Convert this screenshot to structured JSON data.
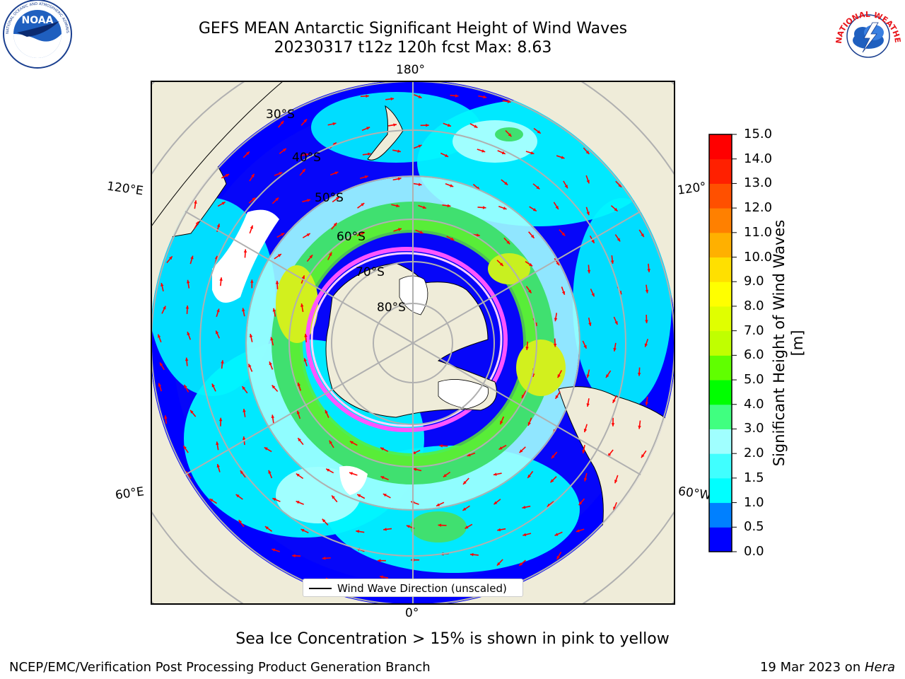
{
  "title": {
    "line1": "GEFS MEAN Antarctic Significant Height of Wind Waves",
    "line2": "20230317 t12z 120h fcst   Max: 8.63"
  },
  "logos": {
    "left": "NOAA",
    "left_ring": "NATIONAL OCEANIC AND ATMOSPHERIC ADMINISTRATION · U.S. DEPARTMENT OF COMMERCE",
    "right_ring": "NATIONAL WEATHER SERVICE"
  },
  "map": {
    "projection": "south-polar-stereographic",
    "longitude_labels": {
      "top": "180°",
      "bottom": "0°",
      "upper_left": "120°E",
      "lower_left": "60°E",
      "upper_right": "120°",
      "lower_right": "60°W"
    },
    "latitude_labels": [
      "30°S",
      "40°S",
      "50°S",
      "60°S",
      "70°S",
      "80°S"
    ],
    "legend_label": "Wind Wave Direction (unscaled)",
    "colors": {
      "land": "#efecd9",
      "ocean_low": "#0000ff",
      "ocean_mid": "#00f5ff",
      "band_green": "#3cdc3c",
      "band_yellow": "#d2f01e",
      "sea_ice": "#ff55ff",
      "arrows": "#ff0000"
    }
  },
  "colorbar": {
    "label": "Significant Height of Wind Waves [m]",
    "ticks": [
      "0.0",
      "0.5",
      "1.0",
      "1.5",
      "2.0",
      "3.0",
      "4.0",
      "5.0",
      "6.0",
      "7.0",
      "8.0",
      "9.0",
      "10.0",
      "11.0",
      "12.0",
      "13.0",
      "14.0",
      "15.0"
    ],
    "colors": [
      "#0000ff",
      "#0080ff",
      "#00ffff",
      "#40ffff",
      "#a0ffff",
      "#40ff80",
      "#00ff00",
      "#60ff00",
      "#c0ff00",
      "#e0ff00",
      "#ffff00",
      "#ffe000",
      "#ffb000",
      "#ff8000",
      "#ff5000",
      "#ff2000",
      "#ff0000"
    ]
  },
  "footer": {
    "sea_ice_note": "Sea Ice Concentration > 15% is shown in pink to yellow",
    "left": "NCEP/EMC/Verification Post Processing Product Generation Branch",
    "right_date": "19 Mar 2023 on ",
    "right_machine": "Hera"
  }
}
